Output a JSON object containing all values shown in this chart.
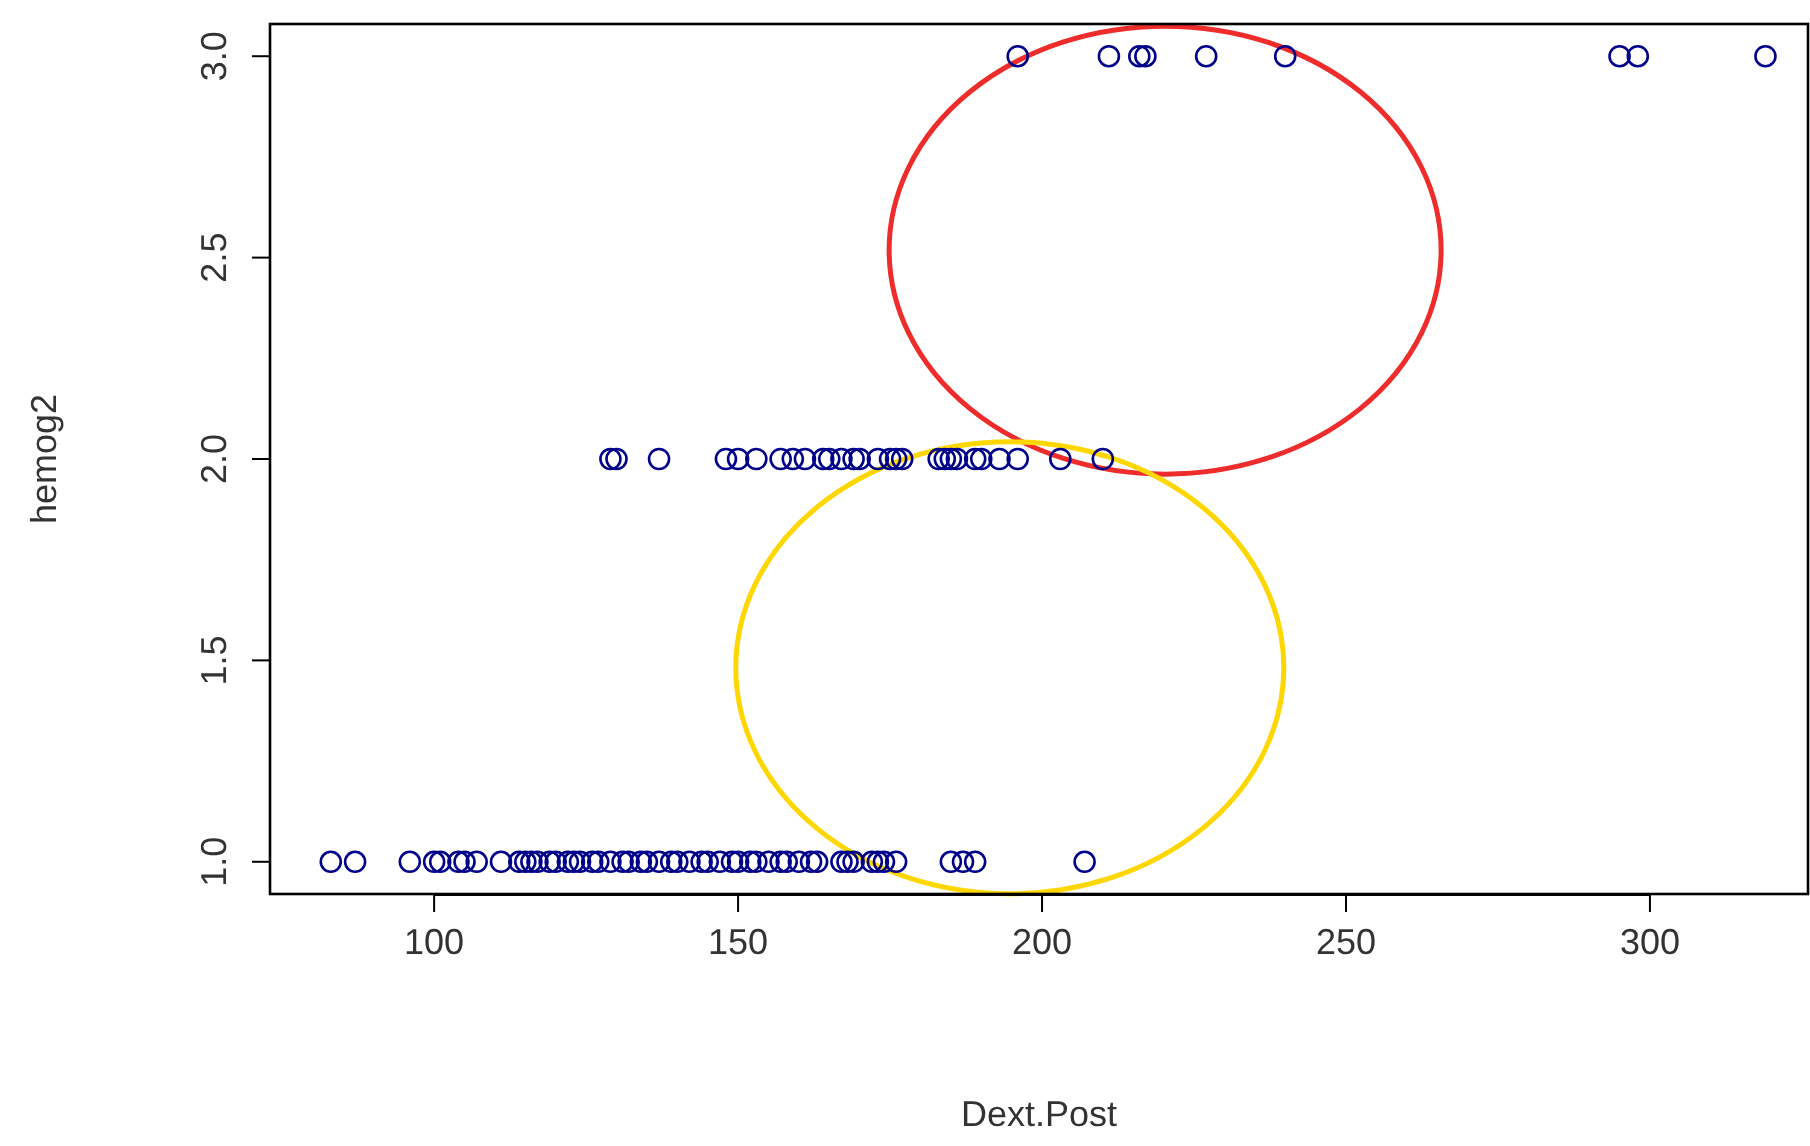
{
  "chart_data": {
    "type": "scatter",
    "xlabel": "Dext.Post",
    "ylabel": "hemog2",
    "marker": "circle",
    "grid": false,
    "xlim": [
      73,
      326
    ],
    "xticks": [
      100,
      150,
      200,
      250,
      300
    ],
    "ylim": [
      0.92,
      3.08
    ],
    "yticks": [
      {
        "value": 1,
        "label": "1.0"
      },
      {
        "value": 1.5,
        "label": "1.5"
      },
      {
        "value": 2,
        "label": "2.0"
      },
      {
        "value": 2.5,
        "label": "2.5"
      },
      {
        "value": 3,
        "label": "3.0"
      }
    ],
    "series": [
      {
        "color": "#00008b",
        "x": [
          83,
          87,
          96,
          100,
          101,
          104,
          105,
          107,
          111,
          114,
          115,
          116,
          117,
          119,
          120,
          122,
          123,
          124,
          126,
          127,
          129,
          131,
          132,
          134,
          135,
          137,
          139,
          140,
          142,
          144,
          145,
          147,
          149,
          150,
          152,
          153,
          155,
          157,
          158,
          160,
          162,
          163,
          167,
          168,
          169,
          172,
          173,
          174,
          176,
          185,
          187,
          189,
          207
        ],
        "values": [
          1,
          1,
          1,
          1,
          1,
          1,
          1,
          1,
          1,
          1,
          1,
          1,
          1,
          1,
          1,
          1,
          1,
          1,
          1,
          1,
          1,
          1,
          1,
          1,
          1,
          1,
          1,
          1,
          1,
          1,
          1,
          1,
          1,
          1,
          1,
          1,
          1,
          1,
          1,
          1,
          1,
          1,
          1,
          1,
          1,
          1,
          1,
          1,
          1,
          1,
          1,
          1,
          1
        ]
      },
      {
        "color": "#00008b",
        "x": [
          129,
          130,
          137,
          148,
          150,
          153,
          157,
          159,
          161,
          164,
          165,
          167,
          169,
          170,
          173,
          175,
          176,
          177,
          183,
          184,
          185,
          186,
          189,
          190,
          193,
          196,
          203,
          210
        ],
        "values": [
          2,
          2,
          2,
          2,
          2,
          2,
          2,
          2,
          2,
          2,
          2,
          2,
          2,
          2,
          2,
          2,
          2,
          2,
          2,
          2,
          2,
          2,
          2,
          2,
          2,
          2,
          2,
          2
        ]
      },
      {
        "color": "#00008b",
        "x": [
          196,
          211,
          216,
          217,
          227,
          240,
          295,
          298,
          319
        ],
        "values": [
          3,
          3,
          3,
          3,
          3,
          3,
          3,
          3,
          3
        ]
      }
    ]
  }
}
